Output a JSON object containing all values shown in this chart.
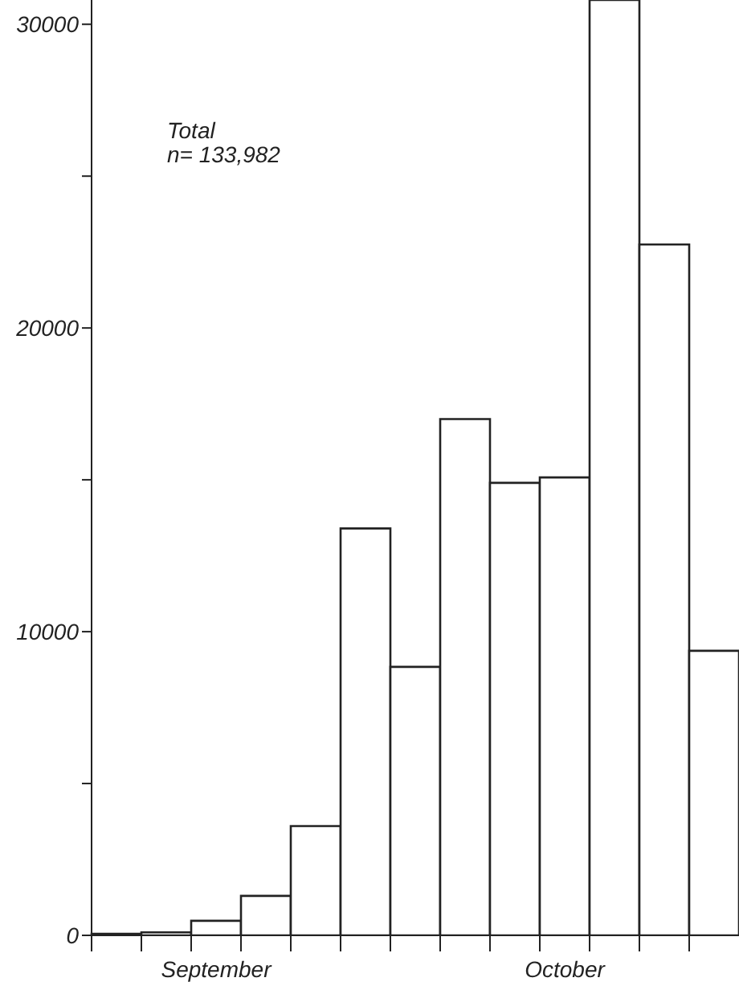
{
  "chart_data": {
    "type": "bar",
    "categories": [
      null,
      null,
      "September",
      null,
      null,
      null,
      null,
      null,
      null,
      "October",
      null,
      null,
      null
    ],
    "values": [
      50,
      100,
      480,
      1300,
      3600,
      13400,
      8840,
      17000,
      14900,
      15080,
      30800,
      22750,
      9370
    ],
    "color": "#ffffff",
    "ylim": [
      0,
      30800
    ],
    "yticks": [
      0,
      {
        "value": 5000,
        "label": null
      },
      10000,
      {
        "value": 15000,
        "label": null
      },
      20000,
      {
        "value": 25000,
        "label": null
      },
      30000
    ],
    "annotations": [
      "Total",
      "n= 133,982"
    ],
    "grid": false
  }
}
